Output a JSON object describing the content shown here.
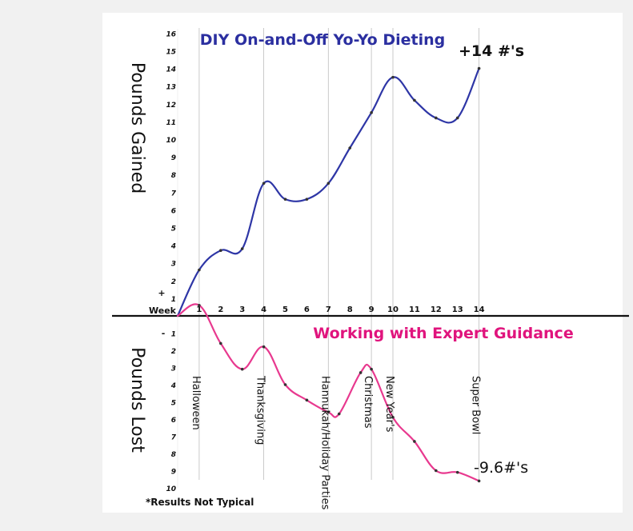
{
  "chart_data": {
    "type": "line",
    "x_label_word": "Week",
    "x_ticks": [
      "1",
      "2",
      "3",
      "4",
      "5",
      "6",
      "7",
      "8",
      "9",
      "10",
      "11",
      "12",
      "13",
      "14"
    ],
    "y_ticks_gained": [
      "1",
      "2",
      "3",
      "4",
      "5",
      "6",
      "7",
      "8",
      "9",
      "10",
      "11",
      "12",
      "13",
      "14",
      "15",
      "16"
    ],
    "y_ticks_lost": [
      "1",
      "2",
      "3",
      "4",
      "5",
      "6",
      "7",
      "8",
      "9",
      "10"
    ],
    "plus_sign": "+",
    "minus_sign": "-",
    "ylabel_top": "Pounds Gained",
    "ylabel_bottom": "Pounds Lost",
    "ylim": [
      -10,
      16
    ],
    "series": [
      {
        "name": "DIY On-and-Off Yo-Yo Dieting",
        "color": "#2e36a6",
        "x": [
          0,
          1,
          2,
          3,
          4,
          5,
          6,
          7,
          8,
          9,
          10,
          11,
          12,
          13,
          14
        ],
        "values": [
          0,
          2.6,
          3.7,
          3.8,
          7.5,
          6.6,
          6.6,
          7.5,
          9.5,
          11.5,
          13.5,
          12.2,
          11.2,
          11.2,
          14.0
        ],
        "end_label": "+14 #'s"
      },
      {
        "name": "Working with Expert Guidance",
        "color": "#e8398f",
        "x": [
          0,
          1,
          2,
          3,
          4,
          5,
          6,
          7,
          7.5,
          8.5,
          9,
          10,
          11,
          12,
          13,
          14
        ],
        "values": [
          0,
          0.6,
          -1.6,
          -3.1,
          -1.8,
          -4.0,
          -4.9,
          -5.6,
          -5.7,
          -3.3,
          -3.1,
          -5.9,
          -7.3,
          -9.0,
          -9.1,
          -9.6
        ],
        "end_label": "-9.6#'s"
      }
    ],
    "events": [
      {
        "week": 1,
        "label": "Halloween"
      },
      {
        "week": 4,
        "label": "Thanksgiving"
      },
      {
        "week": 7,
        "label": "Hannukah/Holiday Parties"
      },
      {
        "week": 9,
        "label": "Christmas"
      },
      {
        "week": 10,
        "label": "New Year's"
      },
      {
        "week": 14,
        "label": "Super Bowl"
      }
    ],
    "footnote": "*Results Not Typical",
    "grid": false
  }
}
